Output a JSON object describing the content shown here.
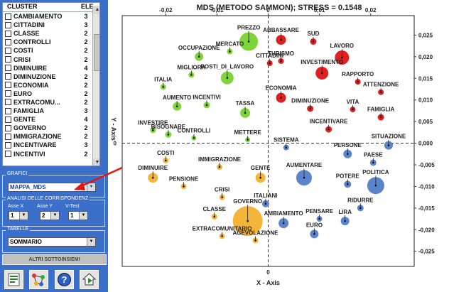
{
  "cluster_list": {
    "header": {
      "col1": "CLUSTER",
      "col2": "ELE"
    },
    "items": [
      {
        "name": "CAMBIAMENTO",
        "count": "3"
      },
      {
        "name": "CITTADINI",
        "count": "3"
      },
      {
        "name": "CLASSE",
        "count": "2"
      },
      {
        "name": "CONTROLLI",
        "count": "2"
      },
      {
        "name": "COSTI",
        "count": "2"
      },
      {
        "name": "CRISI",
        "count": "2"
      },
      {
        "name": "DIMINUIRE",
        "count": "4"
      },
      {
        "name": "DIMINUZIONE",
        "count": "2"
      },
      {
        "name": "ECONOMIA",
        "count": "2"
      },
      {
        "name": "EURO",
        "count": "2"
      },
      {
        "name": "EXTRACOMU...",
        "count": "2"
      },
      {
        "name": "FAMIGLIA",
        "count": "3"
      },
      {
        "name": "GENTE",
        "count": "4"
      },
      {
        "name": "GOVERNO",
        "count": "2"
      },
      {
        "name": "IMMIGRAZIONE",
        "count": "2"
      },
      {
        "name": "INCENTIVARE",
        "count": "3"
      },
      {
        "name": "INCENTIVI",
        "count": "2"
      }
    ]
  },
  "grafici": {
    "label": "GRAFICI",
    "value": "MAPPA_MDS"
  },
  "analisi": {
    "label": "ANALISI DELLE CORRISPONDENZ",
    "asse_x_label": "Asse X",
    "asse_y_label": "Asse Y",
    "vtest_label": "V-Test",
    "asse_x": "1",
    "asse_y": "2",
    "vtest": "1"
  },
  "tabelle": {
    "label": "TABELLE",
    "value": "SOMMARIO"
  },
  "altri_button": "ALTRI SOTTOINSIEMI",
  "toolbar": {
    "icons": [
      "excel-report-icon",
      "network-graph-icon",
      "help-icon",
      "home-icon"
    ]
  },
  "colors": {
    "green": "#7fd43a",
    "red": "#e02020",
    "blue": "#5a85cc",
    "yellow": "#f2b53a",
    "panel": "#3b6fc9"
  },
  "chart_data": {
    "type": "scatter",
    "title": "MDS (METODO SAMMON); STRESS = 0.1548",
    "xlabel": "X - Axis",
    "ylabel": "Y - Axis",
    "xlim": [
      -0.0285,
      0.0285
    ],
    "ylim": [
      -0.0285,
      0.0295
    ],
    "xticks": [
      "-0,02",
      "-0,01",
      "0",
      "0,01",
      "0,02"
    ],
    "xtick_values": [
      -0.02,
      -0.01,
      0,
      0.01,
      0.02
    ],
    "yticks": [
      "0,025",
      "0,020",
      "0,015",
      "0,010",
      "0,005",
      "0,000",
      "-0,005",
      "-0,010",
      "-0,015",
      "-0,020",
      "-0,025"
    ],
    "ytick_values": [
      0.025,
      0.02,
      0.015,
      0.01,
      0.005,
      0,
      -0.005,
      -0.01,
      -0.015,
      -0.02,
      -0.025
    ],
    "points": [
      {
        "label": "PREZZO",
        "x": -0.0038,
        "y": 0.0235,
        "size": 2.2,
        "color": "green"
      },
      {
        "label": "ABBASSARE",
        "x": 0.0025,
        "y": 0.0239,
        "size": 1.0,
        "color": "red"
      },
      {
        "label": "SUD",
        "x": 0.0088,
        "y": 0.0235,
        "size": 0.5,
        "color": "red"
      },
      {
        "label": "LAVORO",
        "x": 0.0144,
        "y": 0.0198,
        "size": 1.6,
        "color": "red"
      },
      {
        "label": "MERCATO",
        "x": -0.0075,
        "y": 0.0212,
        "size": 0.4,
        "color": "green"
      },
      {
        "label": "OCCUPAZIONE",
        "x": -0.0135,
        "y": 0.02,
        "size": 0.8,
        "color": "green"
      },
      {
        "label": "POSTI_DI_LAVORO",
        "x": -0.008,
        "y": 0.0151,
        "size": 1.4,
        "color": "green"
      },
      {
        "label": "MIGLIORA",
        "x": -0.015,
        "y": 0.0158,
        "size": 0.4,
        "color": "green"
      },
      {
        "label": "TURISMO",
        "x": 0.0025,
        "y": 0.019,
        "size": 0.4,
        "color": "red"
      },
      {
        "label": "INVESTIMENTO",
        "x": 0.0105,
        "y": 0.0162,
        "size": 1.4,
        "color": "red"
      },
      {
        "label": "CITTADINI",
        "x": 0.0003,
        "y": 0.0185,
        "size": 0.4,
        "color": "red"
      },
      {
        "label": "RAPPORTO",
        "x": 0.0175,
        "y": 0.0142,
        "size": 0.4,
        "color": "red"
      },
      {
        "label": "ATTENZIONE",
        "x": 0.022,
        "y": 0.0118,
        "size": 0.4,
        "color": "red"
      },
      {
        "label": "ITALIA",
        "x": -0.0205,
        "y": 0.013,
        "size": 0.4,
        "color": "green"
      },
      {
        "label": "ECONOMIA",
        "x": 0.0025,
        "y": 0.0105,
        "size": 1.0,
        "color": "red"
      },
      {
        "label": "AUMENTO",
        "x": -0.0178,
        "y": 0.0085,
        "size": 0.8,
        "color": "green"
      },
      {
        "label": "INCENTIVI",
        "x": -0.012,
        "y": 0.0088,
        "size": 0.5,
        "color": "green"
      },
      {
        "label": "TASSA",
        "x": -0.0045,
        "y": 0.007,
        "size": 1.0,
        "color": "green"
      },
      {
        "label": "DIMINUZIONE",
        "x": 0.0082,
        "y": 0.008,
        "size": 0.5,
        "color": "red"
      },
      {
        "label": "VITA",
        "x": 0.0165,
        "y": 0.0078,
        "size": 0.4,
        "color": "red"
      },
      {
        "label": "FAMIGLIA",
        "x": 0.022,
        "y": 0.006,
        "size": 0.5,
        "color": "red"
      },
      {
        "label": "INVESTIRE",
        "x": -0.0225,
        "y": 0.003,
        "size": 0.4,
        "color": "green"
      },
      {
        "label": "BISOGNARE",
        "x": -0.0195,
        "y": 0.002,
        "size": 0.5,
        "color": "green"
      },
      {
        "label": "CONTROLLI",
        "x": -0.0145,
        "y": 0.0012,
        "size": 0.3,
        "color": "green"
      },
      {
        "label": "METTERE",
        "x": -0.004,
        "y": 0.0008,
        "size": 0.3,
        "color": "green"
      },
      {
        "label": "INCENTIVARE",
        "x": 0.0118,
        "y": 0.0032,
        "size": 0.5,
        "color": "red"
      },
      {
        "label": "SISTEMA",
        "x": 0.0035,
        "y": -0.001,
        "size": 0.4,
        "color": "blue"
      },
      {
        "label": "SITUAZIONE",
        "x": 0.0235,
        "y": -0.0005,
        "size": 0.8,
        "color": "blue"
      },
      {
        "label": "PERSONE",
        "x": 0.0155,
        "y": -0.0025,
        "size": 0.8,
        "color": "blue"
      },
      {
        "label": "PAESE",
        "x": 0.0205,
        "y": -0.0045,
        "size": 0.5,
        "color": "blue"
      },
      {
        "label": "COSTI",
        "x": -0.02,
        "y": -0.004,
        "size": 0.4,
        "color": "yellow"
      },
      {
        "label": "IMMIGRAZIONE",
        "x": -0.0095,
        "y": -0.0055,
        "size": 0.4,
        "color": "yellow"
      },
      {
        "label": "GENTE",
        "x": -0.0015,
        "y": -0.008,
        "size": 1.0,
        "color": "yellow"
      },
      {
        "label": "AUMENTARE",
        "x": 0.007,
        "y": -0.008,
        "size": 1.8,
        "color": "blue"
      },
      {
        "label": "POTERE",
        "x": 0.0155,
        "y": -0.0095,
        "size": 0.6,
        "color": "blue"
      },
      {
        "label": "POLITICA",
        "x": 0.021,
        "y": -0.0098,
        "size": 2.0,
        "color": "blue"
      },
      {
        "label": "DIMINUIRE",
        "x": -0.0225,
        "y": -0.008,
        "size": 1.0,
        "color": "yellow"
      },
      {
        "label": "PENSIONE",
        "x": -0.0165,
        "y": -0.01,
        "size": 0.4,
        "color": "yellow"
      },
      {
        "label": "CRISI",
        "x": -0.009,
        "y": -0.0125,
        "size": 0.4,
        "color": "yellow"
      },
      {
        "label": "ITALIANI",
        "x": -0.0005,
        "y": -0.014,
        "size": 0.6,
        "color": "blue"
      },
      {
        "label": "RIDURRE",
        "x": 0.018,
        "y": -0.015,
        "size": 0.5,
        "color": "blue"
      },
      {
        "label": "PENSARE",
        "x": 0.01,
        "y": -0.0175,
        "size": 0.4,
        "color": "blue"
      },
      {
        "label": "LIRA",
        "x": 0.015,
        "y": -0.018,
        "size": 0.8,
        "color": "blue"
      },
      {
        "label": "CLASSE",
        "x": -0.0105,
        "y": -0.017,
        "size": 0.4,
        "color": "yellow"
      },
      {
        "label": "GOVERNO",
        "x": -0.004,
        "y": -0.018,
        "size": 3.8,
        "color": "yellow"
      },
      {
        "label": "AMBIAMENTO",
        "x": 0.003,
        "y": -0.0185,
        "size": 1.0,
        "color": "blue"
      },
      {
        "label": "EURO",
        "x": 0.009,
        "y": -0.021,
        "size": 0.8,
        "color": "blue"
      },
      {
        "label": "EXTRACOMUNITARIO",
        "x": -0.009,
        "y": -0.0215,
        "size": 0.4,
        "color": "yellow"
      },
      {
        "label": "AGEVOLAZIONE",
        "x": -0.0025,
        "y": -0.0225,
        "size": 0.4,
        "color": "yellow"
      }
    ]
  }
}
